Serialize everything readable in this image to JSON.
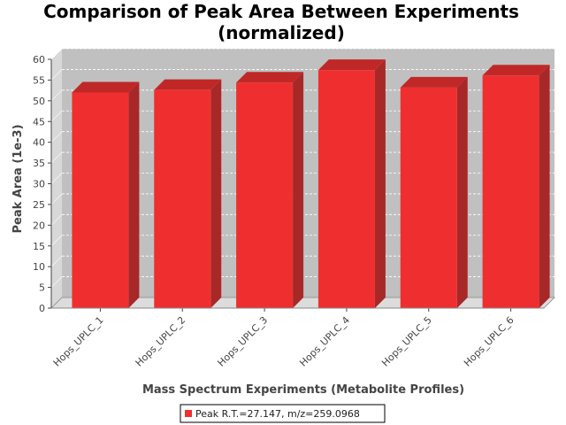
{
  "chart_data": {
    "type": "bar",
    "title_line1": "Comparison of Peak Area Between Experiments",
    "title_line2": "(normalized)",
    "xlabel": "Mass Spectrum Experiments (Metabolite Profiles)",
    "ylabel": "Peak Area (1e-3)",
    "categories": [
      "Hops_UPLC_1",
      "Hops_UPLC_2",
      "Hops_UPLC_3",
      "Hops_UPLC_4",
      "Hops_UPLC_5",
      "Hops_UPLC_6"
    ],
    "series": [
      {
        "name": "Peak R.T.=27.147, m/z=259.0968",
        "values": [
          52.0,
          52.6,
          54.4,
          57.4,
          53.2,
          56.1
        ]
      }
    ],
    "ylim": [
      0,
      60
    ],
    "yticks": [
      0,
      5,
      10,
      15,
      20,
      25,
      30,
      35,
      40,
      45,
      50,
      55,
      60
    ],
    "grid": true,
    "legend_position": "bottom-center",
    "colors": {
      "bar_front": "#ef2f2f",
      "bar_top": "#c02828",
      "bar_side": "#a82828",
      "plot_bg": "#c0c0c0",
      "plot_wall": "#d8d8d8",
      "floor": "#dcdcdc",
      "grid": "#ffffff"
    }
  }
}
